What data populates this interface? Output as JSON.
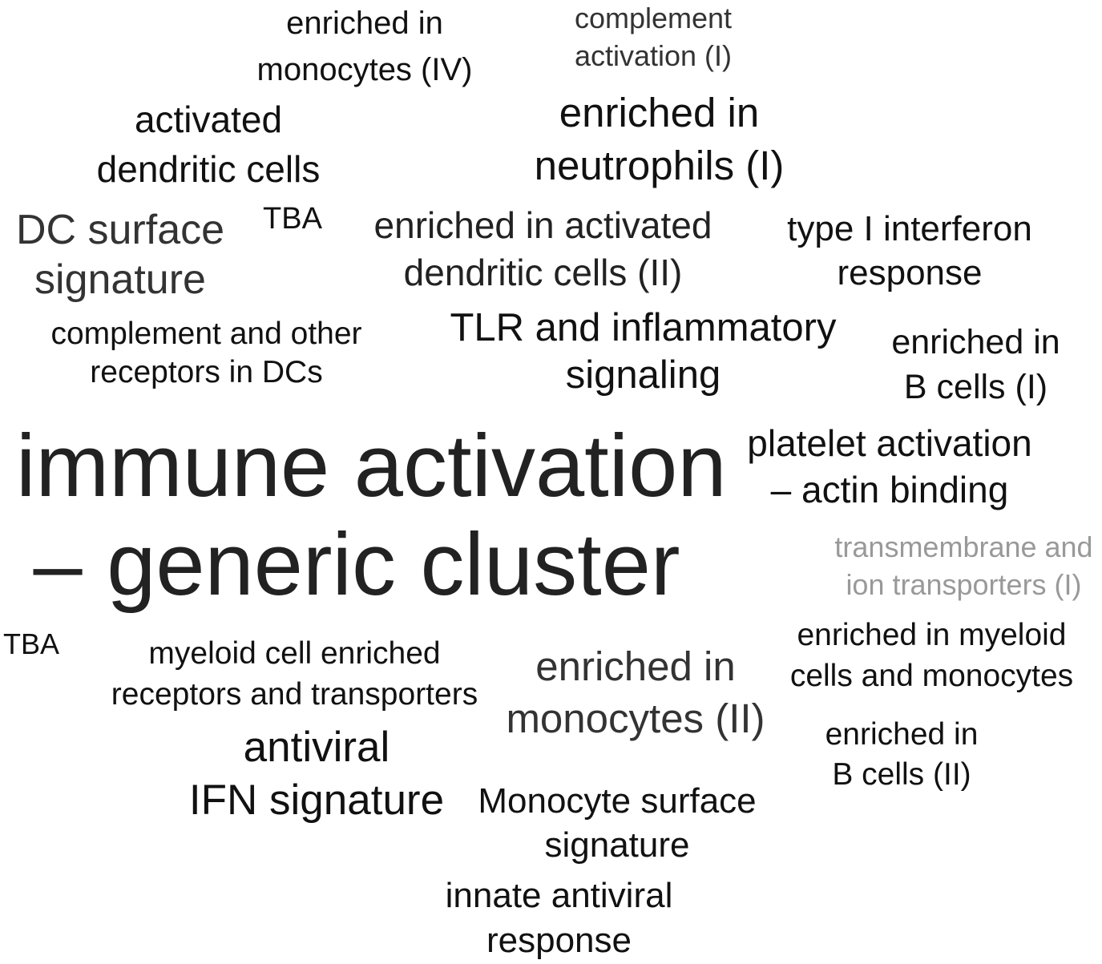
{
  "terms": [
    {
      "line1": "enriched in",
      "line2": "monocytes (IV)",
      "color": "#111111"
    },
    {
      "line1": "complement",
      "line2": "activation (I)",
      "color": "#333333"
    },
    {
      "line1": "activated",
      "line2": "dendritic cells",
      "color": "#111111"
    },
    {
      "line1": "enriched in",
      "line2": "neutrophils (I)",
      "color": "#111111"
    },
    {
      "line1": "DC surface",
      "line2": "signature",
      "color": "#333333"
    },
    {
      "line1": "TBA",
      "line2": "",
      "color": "#111111"
    },
    {
      "line1": "enriched in activated",
      "line2": "dendritic cells (II)",
      "color": "#222222"
    },
    {
      "line1": "type I interferon",
      "line2": "response",
      "color": "#111111"
    },
    {
      "line1": "complement and other",
      "line2": "receptors in DCs",
      "color": "#111111"
    },
    {
      "line1": "TLR and inflammatory",
      "line2": "signaling",
      "color": "#111111"
    },
    {
      "line1": "enriched in",
      "line2": "B cells (I)",
      "color": "#111111"
    },
    {
      "line1": "immune activation",
      "line2": "– generic cluster",
      "color": "#222222"
    },
    {
      "line1": "platelet activation",
      "line2": "– actin binding",
      "color": "#111111"
    },
    {
      "line1": "transmembrane and",
      "line2": "ion transporters (I)",
      "color": "#999999"
    },
    {
      "line1": "TBA",
      "line2": "",
      "color": "#111111"
    },
    {
      "line1": "myeloid cell enriched",
      "line2": "receptors and transporters",
      "color": "#111111"
    },
    {
      "line1": "enriched in",
      "line2": "monocytes (II)",
      "color": "#333333"
    },
    {
      "line1": "enriched in myeloid",
      "line2": "cells and monocytes",
      "color": "#111111"
    },
    {
      "line1": "enriched in",
      "line2": "B cells (II)",
      "color": "#111111"
    },
    {
      "line1": "antiviral",
      "line2": "IFN signature",
      "color": "#111111"
    },
    {
      "line1": "Monocyte surface",
      "line2": "signature",
      "color": "#111111"
    },
    {
      "line1": "innate antiviral",
      "line2": "response",
      "color": "#111111"
    }
  ]
}
